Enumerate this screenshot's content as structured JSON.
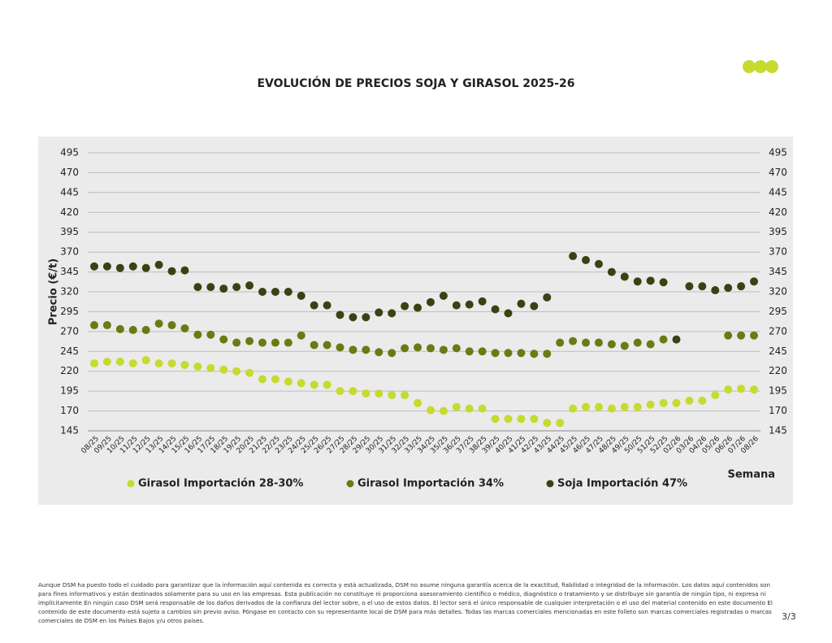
{
  "chart_data": {
    "type": "scatter",
    "title": "EVOLUCIÓN DE PRECIOS SOJA Y GIRASOL 2025-26",
    "y_label": "Precio (€/t)",
    "x_label": "Semana",
    "categories": [
      "08/25",
      "09/25",
      "10/25",
      "11/25",
      "12/25",
      "13/25",
      "14/25",
      "15/25",
      "16/25",
      "17/25",
      "18/25",
      "19/25",
      "20/25",
      "21/25",
      "22/25",
      "23/25",
      "24/25",
      "25/25",
      "26/25",
      "27/25",
      "28/25",
      "29/25",
      "30/25",
      "31/25",
      "32/25",
      "33/25",
      "34/25",
      "35/25",
      "36/25",
      "37/25",
      "38/25",
      "39/25",
      "40/25",
      "41/25",
      "42/25",
      "43/25",
      "44/25",
      "45/25",
      "46/25",
      "47/25",
      "48/25",
      "49/25",
      "50/25",
      "51/25",
      "52/25",
      "02/26",
      "03/26",
      "04/26",
      "05/26",
      "06/26",
      "07/26",
      "08/26"
    ],
    "series": [
      {
        "name": "Girasol Importación 28-30%",
        "color": "#c6da2f",
        "values": [
          230,
          232,
          232,
          230,
          234,
          230,
          230,
          228,
          226,
          224,
          222,
          220,
          218,
          210,
          210,
          207,
          205,
          203,
          203,
          195,
          195,
          192,
          192,
          190,
          190,
          180,
          171,
          170,
          175,
          173,
          173,
          160,
          160,
          160,
          160,
          155,
          155,
          173,
          175,
          175,
          173,
          175,
          175,
          178,
          180,
          180,
          183,
          183,
          190,
          197,
          198,
          197
        ]
      },
      {
        "name": "Girasol Importación 34%",
        "color": "#6b7a12",
        "values": [
          278,
          278,
          273,
          272,
          272,
          280,
          278,
          274,
          266,
          266,
          260,
          256,
          258,
          256,
          256,
          256,
          265,
          253,
          253,
          250,
          247,
          247,
          244,
          243,
          249,
          250,
          249,
          247,
          249,
          245,
          245,
          243,
          243,
          243,
          242,
          242,
          256,
          258,
          256,
          256,
          254,
          252,
          256,
          254,
          260,
          null,
          null,
          null,
          null,
          265,
          265,
          265
        ]
      },
      {
        "name": "Soja Importación 47%",
        "color": "#3a4214",
        "values": [
          352,
          352,
          350,
          352,
          350,
          354,
          346,
          347,
          326,
          326,
          324,
          326,
          328,
          320,
          320,
          320,
          315,
          303,
          303,
          291,
          288,
          288,
          294,
          293,
          302,
          300,
          307,
          315,
          303,
          304,
          308,
          298,
          293,
          305,
          302,
          313,
          null,
          365,
          360,
          355,
          345,
          339,
          333,
          334,
          332,
          260,
          327,
          327,
          322,
          325,
          327,
          333
        ]
      }
    ],
    "ylim": [
      145,
      495
    ],
    "yticks": [
      145,
      170,
      195,
      220,
      245,
      270,
      295,
      320,
      345,
      370,
      395,
      420,
      445,
      470,
      495
    ],
    "grid": true
  },
  "footer": {
    "disclaimer": "Aunque DSM ha puesto todo el cuidado para garantizar que la información aquí contenida es correcta y está actualizada, DSM no asume ninguna garantía acerca de la exactitud, fiabilidad o integridad de la información. Los datos aquí contenidos son para fines informativos y están destinados solamente para su uso en las empresas. Esta publicación no constituye ni proporciona asesoramiento científico o médico, diagnóstico o tratamiento y se distribuye sin garantía de ningún tipo, ni expresa ni implícitamente En ningún caso DSM será responsable de los daños derivados de la confianza del lector sobre, o el uso de estos datos. El lector será el único responsable de cualquier interpretación o el uso del material contenido en este documento El contenido de este documento está sujeto a cambios sin previo aviso. Póngase en contacto con su representante local de DSM para más detalles. Todas las marcas comerciales mencionadas en este folleto son marcas comerciales registradas o marcas comerciales de DSM en los Países Bajos y/u otros países.",
    "page": "3/3"
  }
}
